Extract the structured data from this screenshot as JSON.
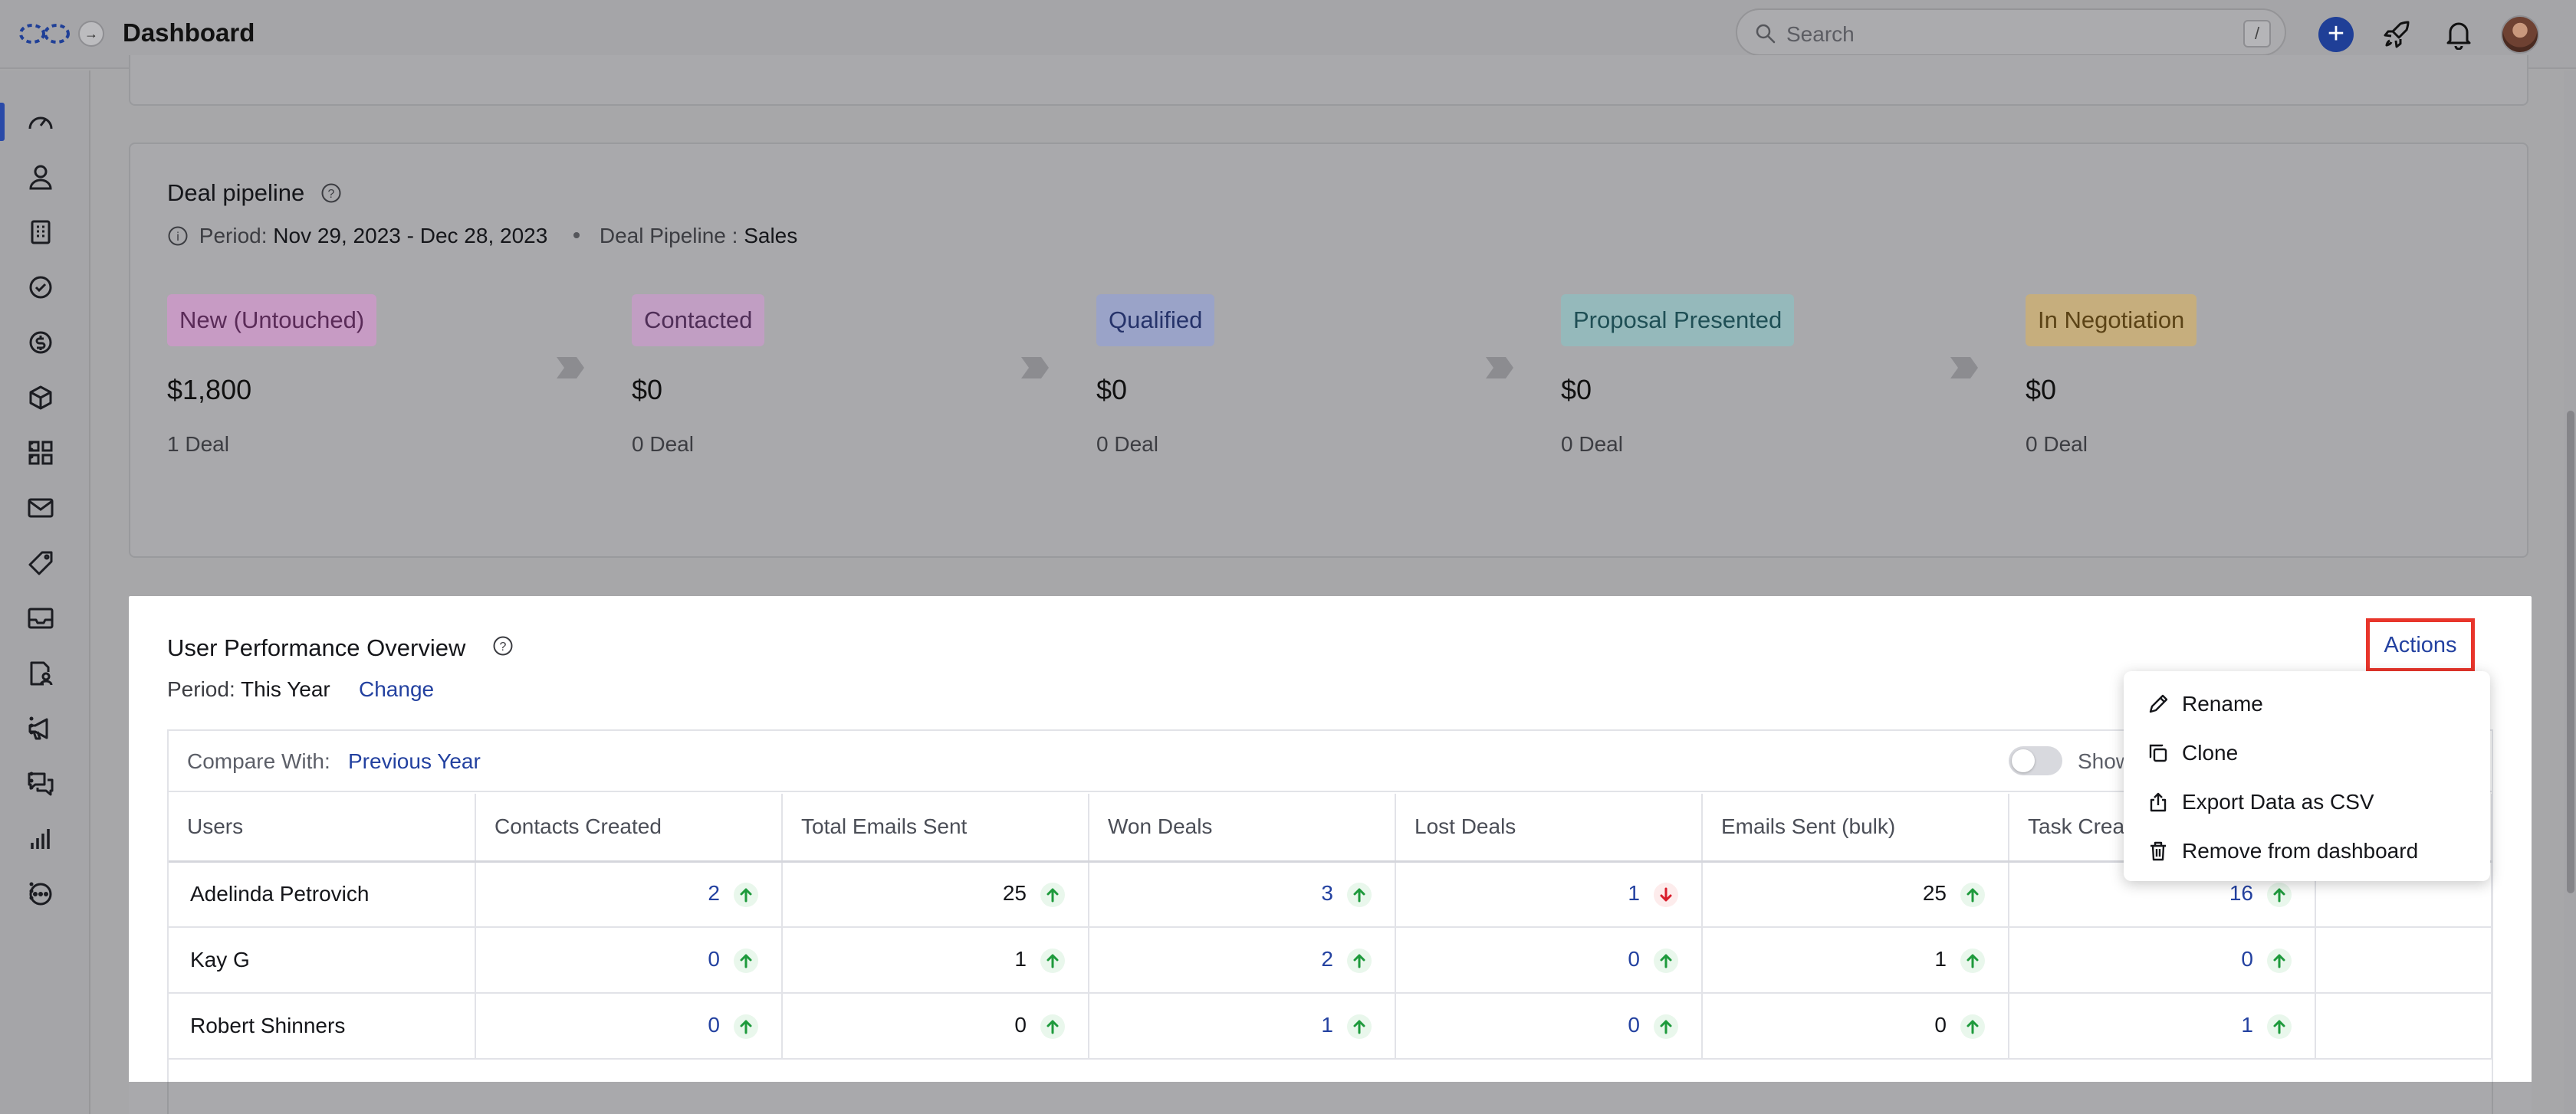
{
  "header": {
    "title": "Dashboard",
    "search_placeholder": "Search",
    "search_shortcut": "/"
  },
  "sidebar": {
    "items": [
      {
        "name": "dashboard",
        "icon": "gauge-icon",
        "active": true
      },
      {
        "name": "contacts",
        "icon": "user-icon"
      },
      {
        "name": "accounts",
        "icon": "building-icon"
      },
      {
        "name": "tasks",
        "icon": "check-circle-icon"
      },
      {
        "name": "deals",
        "icon": "dollar-icon"
      },
      {
        "name": "products",
        "icon": "box-icon"
      },
      {
        "name": "apps",
        "icon": "grid-icon",
        "more": true
      },
      {
        "name": "email",
        "icon": "mail-icon"
      },
      {
        "name": "tags",
        "icon": "tag-icon"
      },
      {
        "name": "inbox",
        "icon": "inbox-icon"
      },
      {
        "name": "documents",
        "icon": "document-user-icon"
      },
      {
        "name": "campaigns",
        "icon": "megaphone-icon",
        "more": true
      },
      {
        "name": "conversations",
        "icon": "chat-icon",
        "more": true
      },
      {
        "name": "reports",
        "icon": "bar-chart-icon"
      },
      {
        "name": "more",
        "icon": "more-circle-icon",
        "more": true
      }
    ]
  },
  "pipeline": {
    "title": "Deal pipeline",
    "period_label": "Period:",
    "period_value": "Nov 29, 2023 - Dec 28, 2023",
    "pipeline_label": "Deal Pipeline :",
    "pipeline_value": "Sales",
    "stages": [
      {
        "label": "New (Untouched)",
        "amount": "$1,800",
        "count": "1 Deal",
        "color": "#c79bc4",
        "text": "#5a2b58"
      },
      {
        "label": "Contacted",
        "amount": "$0",
        "count": "0 Deal",
        "color": "#c19ec3",
        "text": "#4f2e57"
      },
      {
        "label": "Qualified",
        "amount": "$0",
        "count": "0 Deal",
        "color": "#9aa3c8",
        "text": "#26336a"
      },
      {
        "label": "Proposal Presented",
        "amount": "$0",
        "count": "0 Deal",
        "color": "#95b9bb",
        "text": "#1f4f55"
      },
      {
        "label": "In Negotiation",
        "amount": "$0",
        "count": "0 Deal",
        "color": "#c6ae7d",
        "text": "#5b4316"
      }
    ]
  },
  "performance": {
    "title": "User Performance Overview",
    "period_label": "Period:",
    "period_value": "This Year",
    "change_label": "Change",
    "actions_label": "Actions",
    "compare_label": "Compare With:",
    "compare_value": "Previous Year",
    "toggle_label": "Show",
    "columns": [
      "Users",
      "Contacts Created",
      "Total Emails Sent",
      "Won Deals",
      "Lost Deals",
      "Emails Sent (bulk)",
      "Task Created",
      ""
    ],
    "rows": [
      {
        "user": "Adelinda Petrovich",
        "values": [
          "2",
          "25",
          "3",
          "1",
          "25",
          "16"
        ],
        "trends": [
          "up",
          "up",
          "up",
          "down",
          "up",
          "up"
        ]
      },
      {
        "user": "Kay G",
        "values": [
          "0",
          "1",
          "2",
          "0",
          "1",
          "0"
        ],
        "trends": [
          "up",
          "up",
          "up",
          "up",
          "up",
          "up"
        ]
      },
      {
        "user": "Robert Shinners",
        "values": [
          "0",
          "0",
          "1",
          "0",
          "0",
          "1"
        ],
        "trends": [
          "up",
          "up",
          "up",
          "up",
          "up",
          "up"
        ]
      }
    ]
  },
  "actions_menu": {
    "items": [
      {
        "label": "Rename",
        "icon": "pencil-icon"
      },
      {
        "label": "Clone",
        "icon": "copy-icon"
      },
      {
        "label": "Export Data as CSV",
        "icon": "export-icon"
      },
      {
        "label": "Remove from dashboard",
        "icon": "trash-icon"
      }
    ]
  },
  "colors": {
    "accent": "#2341a0",
    "highlight_border": "#e8352b",
    "trend_up": "#1e9a3c",
    "trend_down": "#d81e2c"
  }
}
